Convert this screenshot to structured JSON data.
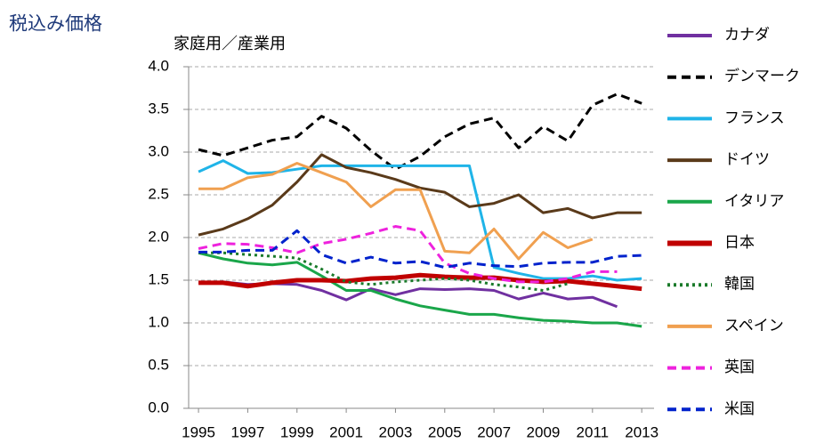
{
  "chart_data": {
    "type": "line",
    "title": "税込み価格",
    "subtitle": "家庭用／産業用",
    "x": [
      1995,
      1996,
      1997,
      1998,
      1999,
      2000,
      2001,
      2002,
      2003,
      2004,
      2005,
      2006,
      2007,
      2008,
      2009,
      2010,
      2011,
      2012,
      2013
    ],
    "xlim": [
      1994.6,
      2013.5
    ],
    "xticks": [
      1995,
      1997,
      1999,
      2001,
      2003,
      2005,
      2007,
      2009,
      2011,
      2013
    ],
    "ylim": [
      0,
      4
    ],
    "yticks": [
      {
        "value": 0,
        "label": "0.0"
      },
      {
        "value": 0.5,
        "label": "0.5"
      },
      {
        "value": 1,
        "label": "1.0"
      },
      {
        "value": 1.5,
        "label": "1.5"
      },
      {
        "value": 2,
        "label": "2.0"
      },
      {
        "value": 2.5,
        "label": "2.5"
      },
      {
        "value": 3,
        "label": "3.0"
      },
      {
        "value": 3.5,
        "label": "3.5"
      },
      {
        "value": 4,
        "label": "4.0"
      }
    ],
    "grid": true,
    "legend": "right",
    "series": [
      {
        "name": "カナダ",
        "color": "#7030a0",
        "line_style": "solid",
        "width": 3,
        "values": [
          1.47,
          1.48,
          1.45,
          1.46,
          1.45,
          1.38,
          1.27,
          1.4,
          1.33,
          1.4,
          1.39,
          1.4,
          1.38,
          1.28,
          1.35,
          1.28,
          1.3,
          1.19,
          null
        ]
      },
      {
        "name": "デンマーク",
        "color": "#000000",
        "line_style": "dashed",
        "width": 3,
        "values": [
          3.03,
          2.96,
          3.05,
          3.14,
          3.18,
          3.42,
          3.28,
          3.02,
          2.8,
          2.95,
          3.18,
          3.33,
          3.4,
          3.05,
          3.3,
          3.13,
          3.55,
          3.68,
          3.57
        ]
      },
      {
        "name": "フランス",
        "color": "#1fb4e8",
        "line_style": "solid",
        "width": 3,
        "values": [
          2.77,
          2.9,
          2.75,
          2.76,
          2.8,
          2.84,
          2.84,
          2.84,
          2.84,
          2.84,
          2.84,
          2.84,
          1.65,
          1.58,
          1.52,
          1.52,
          1.55,
          1.5,
          1.52
        ]
      },
      {
        "name": "ドイツ",
        "color": "#5a3a1a",
        "line_style": "solid",
        "width": 3,
        "values": [
          2.03,
          2.1,
          2.22,
          2.38,
          2.65,
          2.97,
          2.82,
          2.76,
          2.68,
          2.58,
          2.53,
          2.36,
          2.4,
          2.5,
          2.29,
          2.34,
          2.23,
          2.29,
          2.29
        ]
      },
      {
        "name": "イタリア",
        "color": "#1aa64a",
        "line_style": "solid",
        "width": 3,
        "values": [
          1.82,
          1.75,
          1.7,
          1.68,
          1.71,
          1.55,
          1.38,
          1.38,
          1.28,
          1.2,
          1.15,
          1.1,
          1.1,
          1.06,
          1.03,
          1.02,
          1.0,
          1.0,
          0.96
        ]
      },
      {
        "name": "日本",
        "color": "#c00000",
        "line_style": "solid",
        "width": 5,
        "values": [
          1.47,
          1.47,
          1.43,
          1.47,
          1.5,
          1.5,
          1.49,
          1.52,
          1.53,
          1.56,
          1.54,
          1.53,
          1.53,
          1.5,
          1.48,
          1.49,
          1.46,
          1.43,
          1.4
        ]
      },
      {
        "name": "韓国",
        "color": "#1a7a2a",
        "line_style": "dotted",
        "width": 3,
        "values": [
          1.82,
          1.82,
          1.8,
          1.78,
          1.76,
          1.63,
          1.48,
          1.45,
          1.48,
          1.5,
          1.52,
          1.5,
          1.45,
          1.42,
          1.38,
          1.46,
          null,
          null,
          null
        ]
      },
      {
        "name": "スペイン",
        "color": "#f0a050",
        "line_style": "solid",
        "width": 3,
        "values": [
          2.57,
          2.57,
          2.7,
          2.74,
          2.87,
          2.76,
          2.65,
          2.36,
          2.56,
          2.56,
          1.84,
          1.82,
          2.1,
          1.75,
          2.06,
          1.88,
          1.98,
          null,
          null
        ]
      },
      {
        "name": "英国",
        "color": "#ee22dd",
        "line_style": "dashed",
        "width": 3,
        "values": [
          1.87,
          1.93,
          1.92,
          1.88,
          1.82,
          1.93,
          1.98,
          2.05,
          2.13,
          2.08,
          1.7,
          1.58,
          1.52,
          1.48,
          1.48,
          1.52,
          1.6,
          1.6,
          null
        ]
      },
      {
        "name": "米国",
        "color": "#0022cc",
        "line_style": "dashed",
        "width": 3,
        "values": [
          1.83,
          1.83,
          1.85,
          1.85,
          2.08,
          1.8,
          1.7,
          1.77,
          1.7,
          1.72,
          1.65,
          1.7,
          1.67,
          1.66,
          1.7,
          1.71,
          1.71,
          1.78,
          1.79
        ]
      }
    ]
  }
}
